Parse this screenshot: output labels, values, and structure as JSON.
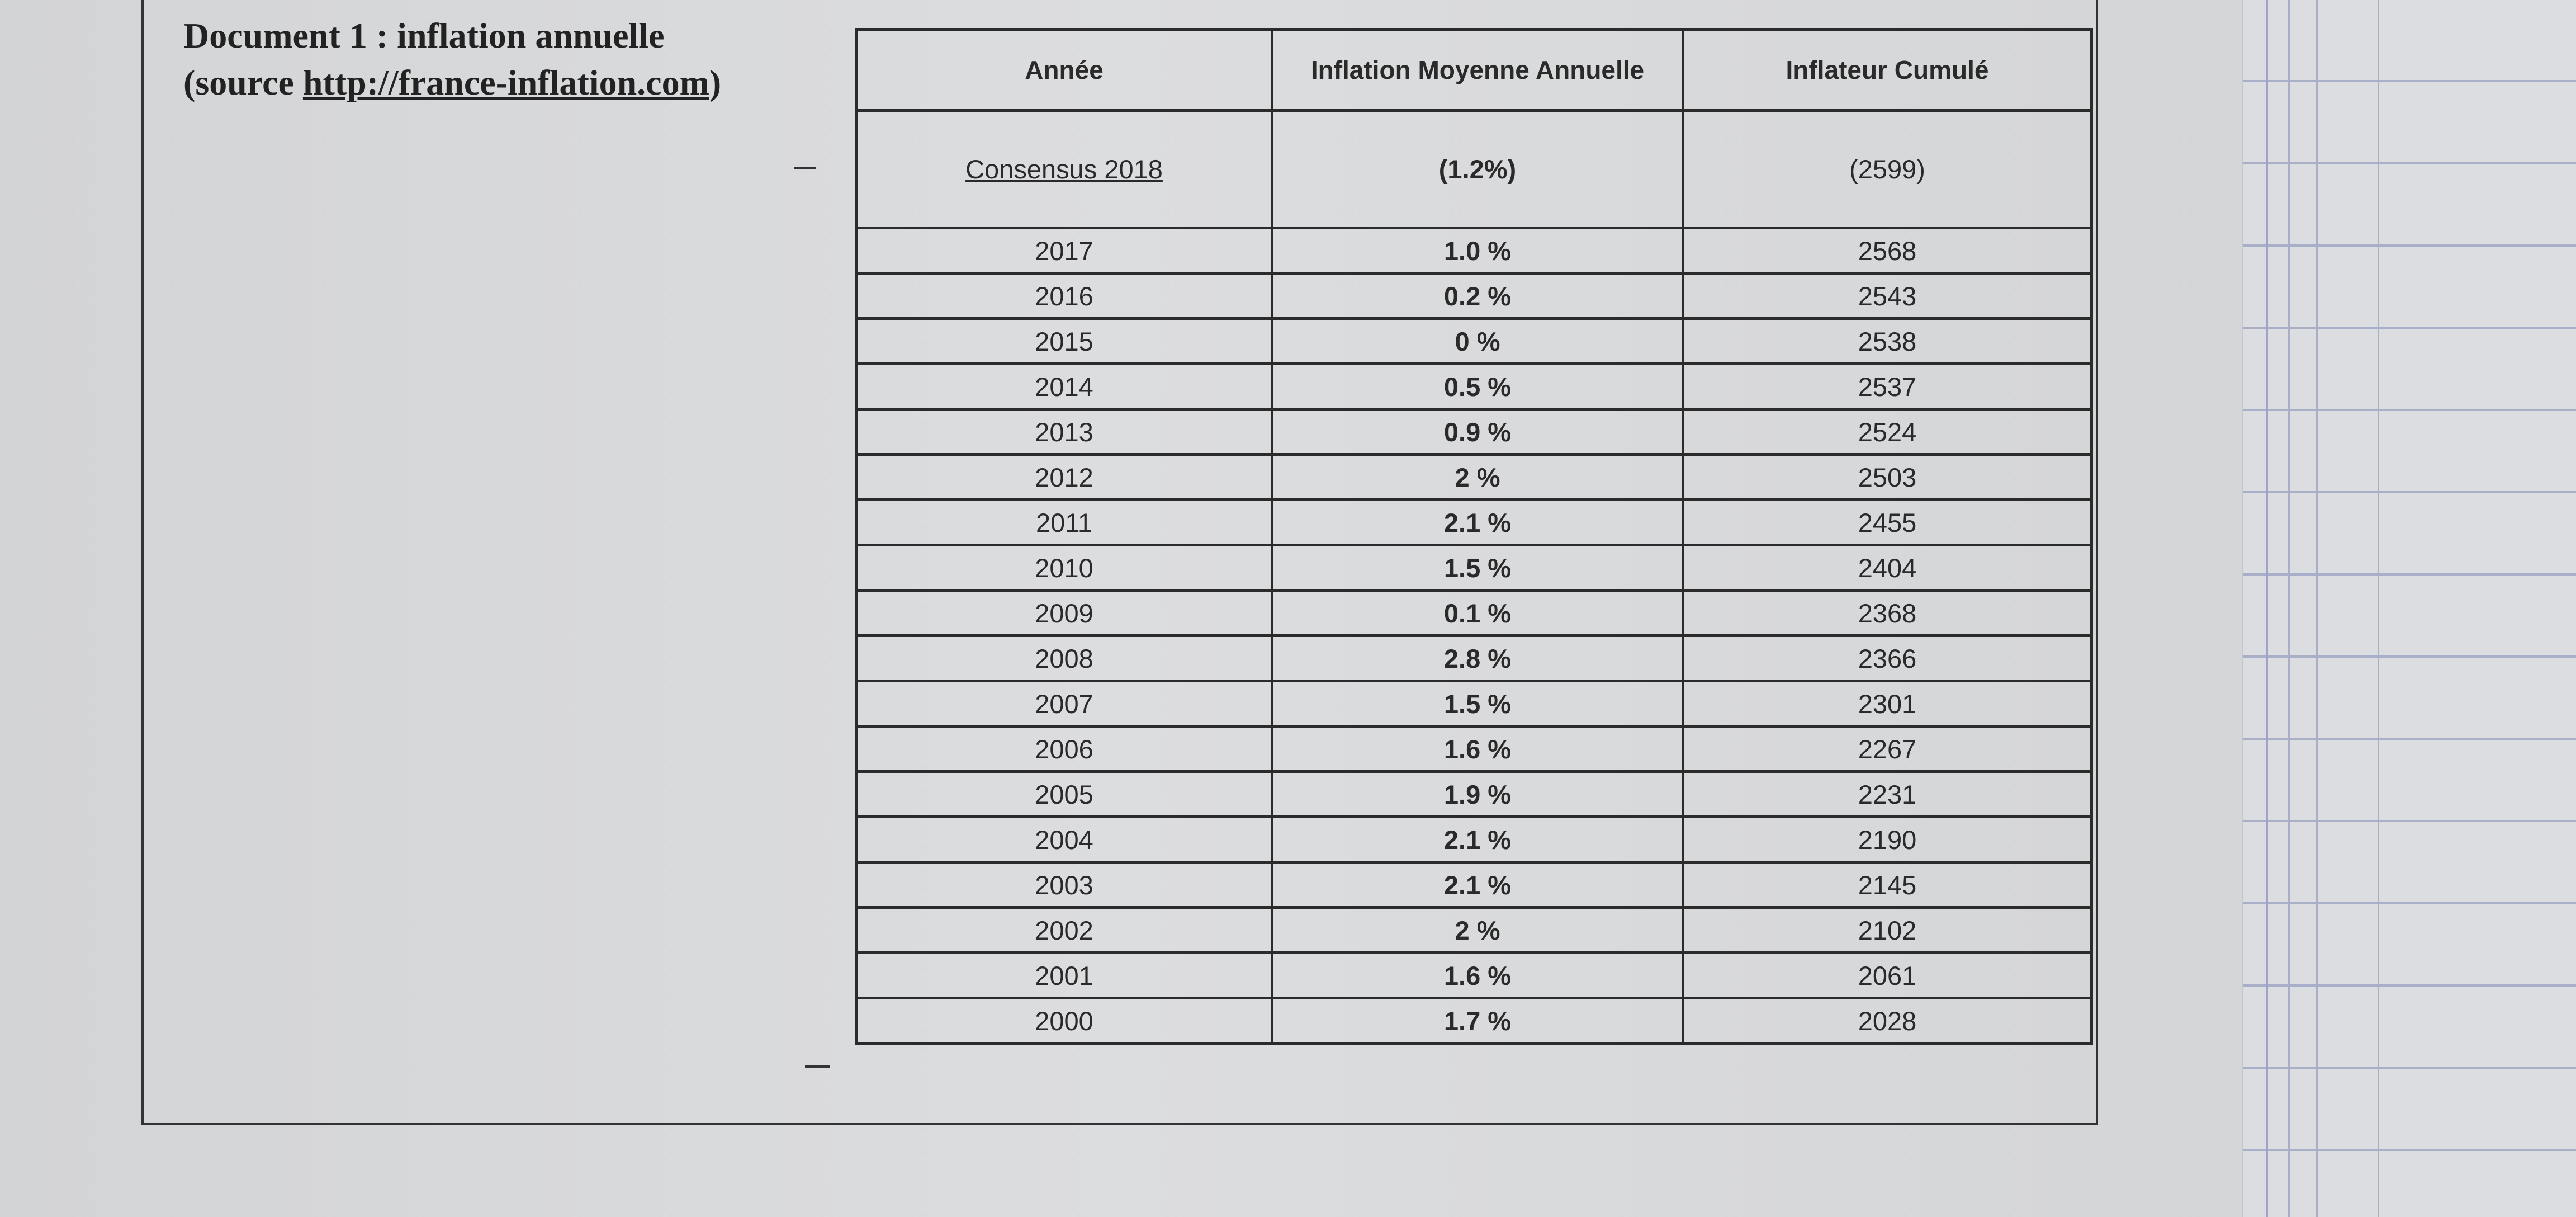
{
  "document": {
    "title_line1": "Document 1 : inflation annuelle",
    "title_source_prefix": "(source ",
    "title_source_link": "http://france-inflation.com",
    "title_source_suffix": ")"
  },
  "table": {
    "headers": [
      "Année",
      "Inflation Moyenne Annuelle",
      "Inflateur Cumulé"
    ],
    "consensus": {
      "label": "Consensus 2018",
      "inflation": "(1.2%)",
      "inflateur": "(2599)"
    },
    "rows": [
      {
        "year": "2017",
        "inflation": "1.0 %",
        "inflateur": "2568"
      },
      {
        "year": "2016",
        "inflation": "0.2 %",
        "inflateur": "2543"
      },
      {
        "year": "2015",
        "inflation": "0 %",
        "inflateur": "2538"
      },
      {
        "year": "2014",
        "inflation": "0.5 %",
        "inflateur": "2537"
      },
      {
        "year": "2013",
        "inflation": "0.9 %",
        "inflateur": "2524"
      },
      {
        "year": "2012",
        "inflation": "2 %",
        "inflateur": "2503"
      },
      {
        "year": "2011",
        "inflation": "2.1 %",
        "inflateur": "2455"
      },
      {
        "year": "2010",
        "inflation": "1.5 %",
        "inflateur": "2404"
      },
      {
        "year": "2009",
        "inflation": "0.1 %",
        "inflateur": "2368"
      },
      {
        "year": "2008",
        "inflation": "2.8 %",
        "inflateur": "2366"
      },
      {
        "year": "2007",
        "inflation": "1.5 %",
        "inflateur": "2301"
      },
      {
        "year": "2006",
        "inflation": "1.6 %",
        "inflateur": "2267"
      },
      {
        "year": "2005",
        "inflation": "1.9 %",
        "inflateur": "2231"
      },
      {
        "year": "2004",
        "inflation": "2.1 %",
        "inflateur": "2190"
      },
      {
        "year": "2003",
        "inflation": "2.1 %",
        "inflateur": "2145"
      },
      {
        "year": "2002",
        "inflation": "2 %",
        "inflateur": "2102"
      },
      {
        "year": "2001",
        "inflation": "1.6 %",
        "inflateur": "2061"
      },
      {
        "year": "2000",
        "inflation": "1.7 %",
        "inflateur": "2028"
      }
    ]
  }
}
